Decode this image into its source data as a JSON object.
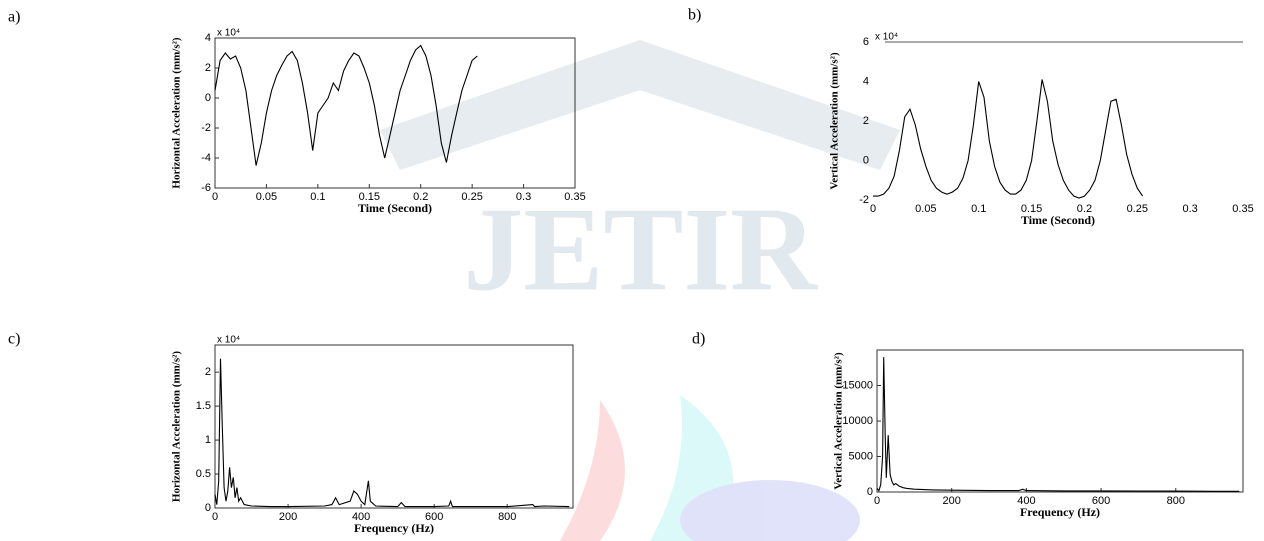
{
  "watermark": "JETIR",
  "chart_data": [
    {
      "type": "line",
      "panel_label": "a)",
      "x_label": "Time (Second)",
      "y_label": "Horizontal Acceleration (mm/s²)",
      "exponent_label": "x 10⁴",
      "box": true,
      "color": "#000000",
      "xlim": [
        0,
        0.35
      ],
      "xticks": [
        0,
        0.05,
        0.1,
        0.15,
        0.2,
        0.25,
        0.3,
        0.35
      ],
      "ylim": [
        -6,
        4
      ],
      "yticks": [
        -6,
        -4,
        -2,
        0,
        2,
        4
      ],
      "x": [
        0,
        0.005,
        0.01,
        0.015,
        0.02,
        0.025,
        0.03,
        0.035,
        0.04,
        0.045,
        0.05,
        0.055,
        0.06,
        0.065,
        0.07,
        0.075,
        0.08,
        0.085,
        0.09,
        0.095,
        0.1,
        0.105,
        0.11,
        0.115,
        0.12,
        0.125,
        0.13,
        0.135,
        0.14,
        0.145,
        0.15,
        0.155,
        0.16,
        0.165,
        0.17,
        0.175,
        0.18,
        0.185,
        0.19,
        0.195,
        0.2,
        0.205,
        0.21,
        0.215,
        0.22,
        0.225,
        0.23,
        0.235,
        0.24,
        0.245,
        0.25,
        0.255
      ],
      "values": [
        0.5,
        2.5,
        3,
        2.6,
        2.8,
        2,
        0.5,
        -2,
        -4.5,
        -3,
        -1,
        0.5,
        1.5,
        2.2,
        2.8,
        3.1,
        2.5,
        1,
        -1,
        -3.5,
        -1,
        -0.5,
        0,
        1,
        0.5,
        1.8,
        2.5,
        3,
        2.8,
        2,
        1,
        -0.5,
        -2.5,
        -4,
        -2.5,
        -1,
        0.5,
        1.5,
        2.5,
        3.2,
        3.5,
        2.8,
        1.5,
        -0.5,
        -3,
        -4.3,
        -2.5,
        -1,
        0.5,
        1.5,
        2.5,
        2.8
      ]
    },
    {
      "type": "line",
      "panel_label": "b)",
      "x_label": "Time (Second)",
      "y_label": "Vertical Acceleration (mm/s²)",
      "exponent_label": "x 10⁴",
      "box": false,
      "color": "#000000",
      "xlim": [
        0,
        0.35
      ],
      "xticks": [
        0,
        0.05,
        0.1,
        0.15,
        0.2,
        0.25,
        0.3,
        0.35
      ],
      "ylim": [
        -2,
        6
      ],
      "yticks": [
        -2,
        0,
        2,
        4,
        6
      ],
      "x": [
        0,
        0.005,
        0.01,
        0.015,
        0.02,
        0.025,
        0.03,
        0.035,
        0.04,
        0.045,
        0.05,
        0.055,
        0.06,
        0.065,
        0.07,
        0.075,
        0.08,
        0.085,
        0.09,
        0.095,
        0.1,
        0.105,
        0.11,
        0.115,
        0.12,
        0.125,
        0.13,
        0.135,
        0.14,
        0.145,
        0.15,
        0.155,
        0.16,
        0.165,
        0.17,
        0.175,
        0.18,
        0.185,
        0.19,
        0.195,
        0.2,
        0.205,
        0.21,
        0.215,
        0.22,
        0.225,
        0.23,
        0.235,
        0.24,
        0.245,
        0.25,
        0.255
      ],
      "values": [
        -1.8,
        -1.8,
        -1.7,
        -1.4,
        -0.8,
        0.5,
        2.2,
        2.6,
        1.8,
        0.6,
        -0.3,
        -1,
        -1.4,
        -1.6,
        -1.7,
        -1.6,
        -1.4,
        -0.9,
        0,
        1.8,
        4,
        3.2,
        1,
        -0.3,
        -1.1,
        -1.5,
        -1.7,
        -1.7,
        -1.5,
        -1,
        0,
        2,
        4.1,
        3,
        1,
        -0.2,
        -1,
        -1.5,
        -1.8,
        -1.9,
        -1.8,
        -1.5,
        -1,
        0,
        1.5,
        3,
        3.1,
        1.8,
        0.3,
        -0.7,
        -1.4,
        -1.8
      ]
    },
    {
      "type": "line",
      "panel_label": "c)",
      "x_label": "Frequency (Hz)",
      "y_label": "Horizontal Acceleration (mm/s²)",
      "exponent_label": "x 10⁴",
      "box": true,
      "color": "#000000",
      "xlim": [
        0,
        980
      ],
      "xticks": [
        0,
        200,
        400,
        600,
        800
      ],
      "ylim": [
        0,
        2.4
      ],
      "yticks": [
        0,
        0.5,
        1,
        1.5,
        2
      ],
      "x": [
        0,
        5,
        10,
        15,
        20,
        25,
        30,
        35,
        40,
        45,
        50,
        55,
        60,
        65,
        70,
        80,
        100,
        150,
        200,
        300,
        320,
        330,
        340,
        370,
        380,
        390,
        400,
        410,
        420,
        425,
        440,
        500,
        510,
        520,
        600,
        640,
        645,
        650,
        700,
        800,
        870,
        875,
        900,
        970
      ],
      "values": [
        0.2,
        0.05,
        0.4,
        2.2,
        1.2,
        0.3,
        0.1,
        0.25,
        0.6,
        0.3,
        0.45,
        0.15,
        0.3,
        0.1,
        0.15,
        0.05,
        0.03,
        0.02,
        0.02,
        0.03,
        0.05,
        0.15,
        0.05,
        0.1,
        0.25,
        0.2,
        0.1,
        0.05,
        0.4,
        0.1,
        0.03,
        0.02,
        0.08,
        0.02,
        0.02,
        0.03,
        0.1,
        0.02,
        0.02,
        0.02,
        0.05,
        0.02,
        0.03,
        0.02
      ]
    },
    {
      "type": "line",
      "panel_label": "d)",
      "x_label": "Frequency (Hz)",
      "y_label": "Vertical Acceleration (mm/s²)",
      "box": true,
      "color": "#000000",
      "xlim": [
        0,
        980
      ],
      "xticks": [
        0,
        200,
        400,
        600,
        800
      ],
      "ylim": [
        0,
        20000
      ],
      "yticks": [
        0,
        5000,
        10000,
        15000
      ],
      "x": [
        0,
        5,
        10,
        15,
        18,
        22,
        25,
        30,
        35,
        40,
        45,
        50,
        60,
        70,
        80,
        100,
        150,
        200,
        300,
        380,
        390,
        400,
        500,
        600,
        700,
        800,
        900,
        970
      ],
      "values": [
        500,
        200,
        1000,
        5000,
        19000,
        8000,
        2000,
        8000,
        2500,
        1500,
        1000,
        1200,
        800,
        600,
        500,
        400,
        300,
        250,
        200,
        200,
        400,
        200,
        150,
        150,
        120,
        120,
        100,
        100
      ]
    }
  ]
}
